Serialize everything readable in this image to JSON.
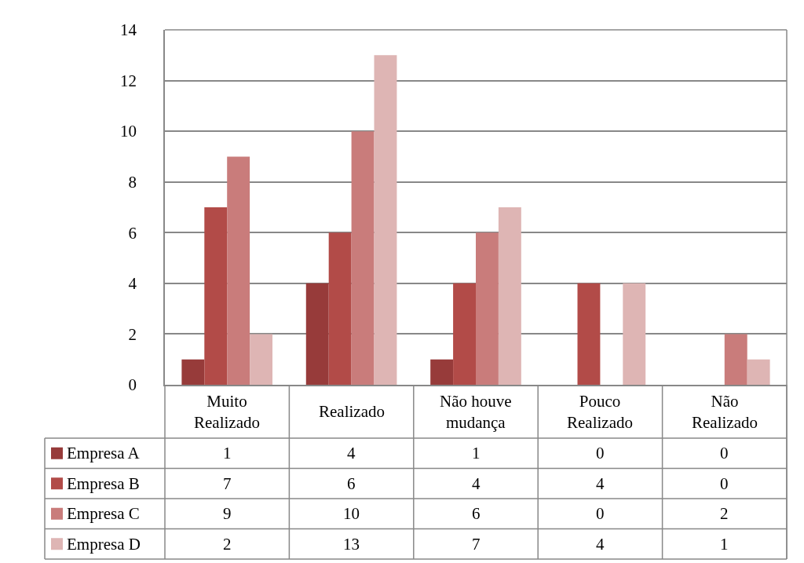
{
  "chart_data": {
    "type": "bar",
    "categories": [
      "Muito Realizado",
      "Realizado",
      "Não houve mudança",
      "Pouco Realizado",
      "Não Realizado"
    ],
    "series": [
      {
        "name": "Empresa A",
        "color": "#973b3a",
        "values": [
          1,
          4,
          1,
          0,
          0
        ]
      },
      {
        "name": "Empresa B",
        "color": "#b24b48",
        "values": [
          7,
          6,
          4,
          4,
          0
        ]
      },
      {
        "name": "Empresa C",
        "color": "#c97c7b",
        "values": [
          9,
          10,
          6,
          0,
          2
        ]
      },
      {
        "name": "Empresa D",
        "color": "#deb5b4",
        "values": [
          2,
          13,
          7,
          4,
          1
        ]
      }
    ],
    "ylim": [
      0,
      14
    ],
    "yticks": [
      0,
      2,
      4,
      6,
      8,
      10,
      12,
      14
    ],
    "grid": "y",
    "legend": "bottom left",
    "data_labels": true
  }
}
